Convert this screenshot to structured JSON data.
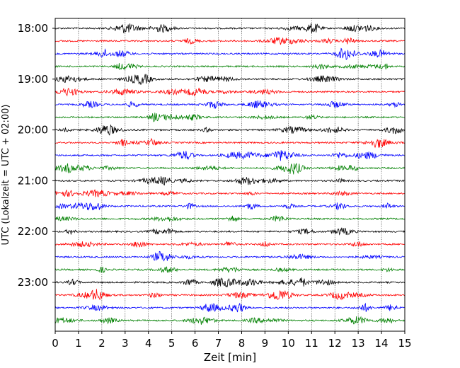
{
  "chart_data": {
    "type": "line",
    "title": "",
    "xlabel": "Zeit  [min]",
    "ylabel": "UTC (Lokalzeit = UTC + 02:00)",
    "xlim": [
      0,
      15
    ],
    "x_ticks": [
      0,
      1,
      2,
      3,
      4,
      5,
      6,
      7,
      8,
      9,
      10,
      11,
      12,
      13,
      14,
      15
    ],
    "y_tick_labels": [
      "18:00",
      "19:00",
      "20:00",
      "21:00",
      "22:00",
      "23:00"
    ],
    "trace_start_times": [
      "18:00",
      "18:15",
      "18:30",
      "18:45",
      "19:00",
      "19:15",
      "19:30",
      "19:45",
      "20:00",
      "20:15",
      "20:30",
      "20:45",
      "21:00",
      "21:15",
      "21:30",
      "21:45",
      "22:00",
      "22:15",
      "22:30",
      "22:45",
      "23:00",
      "23:15",
      "23:30",
      "23:45"
    ],
    "trace_colors": [
      "#000000",
      "#ff0000",
      "#0000ff",
      "#008000"
    ],
    "trace_minutes_each": 15,
    "grid": "vertical dotted at each minute",
    "legend": "none"
  }
}
